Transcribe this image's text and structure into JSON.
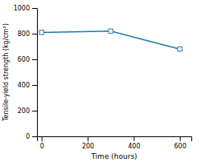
{
  "chart_data": {
    "type": "line",
    "x": [
      0,
      300,
      600
    ],
    "values": [
      810,
      820,
      680
    ],
    "marker": "square",
    "xlabel": "Time (hours)",
    "ylabel": "Tensile-yield strength (kg/cm²)",
    "xlim": [
      -20,
      650
    ],
    "ylim": [
      0,
      1000
    ],
    "xticks": [
      0,
      200,
      400,
      600
    ],
    "yticks": [
      0,
      200,
      400,
      600,
      800,
      1000
    ]
  }
}
